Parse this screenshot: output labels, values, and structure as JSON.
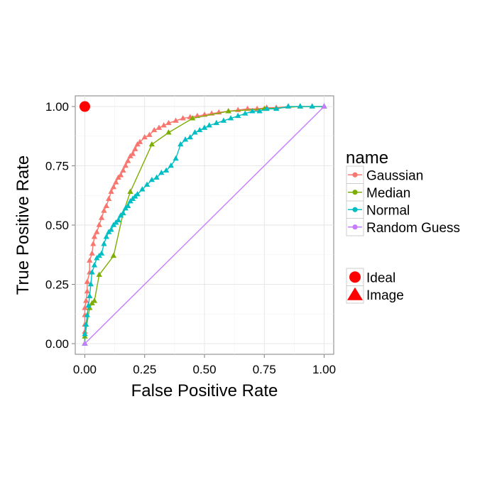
{
  "chart_data": {
    "type": "line",
    "title": "",
    "xlabel": "False Positive Rate",
    "ylabel": "True Positive Rate",
    "xlim": [
      -0.04,
      1.04
    ],
    "ylim": [
      -0.045,
      1.045
    ],
    "xticks": [
      0.0,
      0.25,
      0.5,
      0.75,
      1.0
    ],
    "xtick_labels": [
      "0.00",
      "0.25",
      "0.50",
      "0.75",
      "1.00"
    ],
    "yticks": [
      0.0,
      0.25,
      0.5,
      0.75,
      1.0
    ],
    "ytick_labels": [
      "0.00",
      "0.25",
      "0.50",
      "0.75",
      "1.00"
    ],
    "grid": true,
    "legend_position": "right",
    "legend": {
      "color_title": "name",
      "shape_items": [
        "Ideal",
        "Image"
      ]
    },
    "series": [
      {
        "name": "Gaussian",
        "color": "#F8766D",
        "x": [
          0.0,
          0.0,
          0.0,
          0.0,
          0.0,
          0.005,
          0.01,
          0.01,
          0.02,
          0.02,
          0.03,
          0.035,
          0.04,
          0.05,
          0.06,
          0.07,
          0.08,
          0.09,
          0.1,
          0.11,
          0.12,
          0.13,
          0.14,
          0.15,
          0.16,
          0.17,
          0.18,
          0.19,
          0.2,
          0.21,
          0.22,
          0.23,
          0.25,
          0.27,
          0.29,
          0.31,
          0.33,
          0.35,
          0.38,
          0.41,
          0.44,
          0.47,
          0.5,
          0.53,
          0.56,
          0.6,
          0.64,
          0.68,
          0.72,
          0.76,
          0.8,
          0.85,
          0.9,
          0.95,
          1.0
        ],
        "y": [
          0.0,
          0.05,
          0.08,
          0.12,
          0.15,
          0.18,
          0.22,
          0.26,
          0.3,
          0.35,
          0.38,
          0.42,
          0.45,
          0.47,
          0.5,
          0.53,
          0.56,
          0.58,
          0.61,
          0.64,
          0.66,
          0.68,
          0.7,
          0.71,
          0.73,
          0.75,
          0.77,
          0.79,
          0.8,
          0.82,
          0.84,
          0.85,
          0.87,
          0.88,
          0.9,
          0.91,
          0.92,
          0.93,
          0.94,
          0.95,
          0.955,
          0.96,
          0.965,
          0.97,
          0.975,
          0.98,
          0.985,
          0.99,
          0.99,
          0.995,
          0.995,
          1.0,
          1.0,
          1.0,
          1.0
        ]
      },
      {
        "name": "Median",
        "color": "#7CAE00",
        "x": [
          0.0,
          0.0,
          0.02,
          0.03,
          0.04,
          0.06,
          0.12,
          0.16,
          0.19,
          0.28,
          0.35,
          0.45,
          0.6,
          0.75,
          0.9,
          1.0
        ],
        "y": [
          0.0,
          0.03,
          0.15,
          0.17,
          0.18,
          0.29,
          0.37,
          0.55,
          0.64,
          0.84,
          0.89,
          0.95,
          0.98,
          0.99,
          1.0,
          1.0
        ]
      },
      {
        "name": "Normal",
        "color": "#00BFC4",
        "x": [
          0.0,
          0.0,
          0.005,
          0.01,
          0.015,
          0.02,
          0.025,
          0.03,
          0.04,
          0.05,
          0.06,
          0.07,
          0.08,
          0.09,
          0.1,
          0.11,
          0.12,
          0.13,
          0.14,
          0.15,
          0.16,
          0.17,
          0.18,
          0.19,
          0.2,
          0.21,
          0.22,
          0.24,
          0.26,
          0.28,
          0.3,
          0.32,
          0.34,
          0.36,
          0.38,
          0.4,
          0.42,
          0.44,
          0.46,
          0.48,
          0.5,
          0.52,
          0.55,
          0.58,
          0.61,
          0.64,
          0.67,
          0.7,
          0.73,
          0.76,
          0.8,
          0.85,
          0.9,
          0.95,
          1.0
        ],
        "y": [
          0.0,
          0.04,
          0.08,
          0.12,
          0.16,
          0.2,
          0.25,
          0.3,
          0.33,
          0.36,
          0.37,
          0.38,
          0.42,
          0.45,
          0.47,
          0.48,
          0.5,
          0.51,
          0.52,
          0.54,
          0.55,
          0.57,
          0.58,
          0.6,
          0.61,
          0.62,
          0.63,
          0.65,
          0.67,
          0.69,
          0.7,
          0.72,
          0.73,
          0.75,
          0.78,
          0.84,
          0.86,
          0.87,
          0.89,
          0.9,
          0.91,
          0.92,
          0.93,
          0.94,
          0.95,
          0.96,
          0.97,
          0.98,
          0.98,
          0.99,
          0.99,
          1.0,
          1.0,
          1.0,
          1.0
        ]
      },
      {
        "name": "Random Guess",
        "color": "#C77CFF",
        "x": [
          0.0,
          1.0
        ],
        "y": [
          0.0,
          1.0
        ]
      }
    ],
    "ideal_point": {
      "x": 0.0,
      "y": 1.0,
      "color": "#FF0000"
    }
  }
}
